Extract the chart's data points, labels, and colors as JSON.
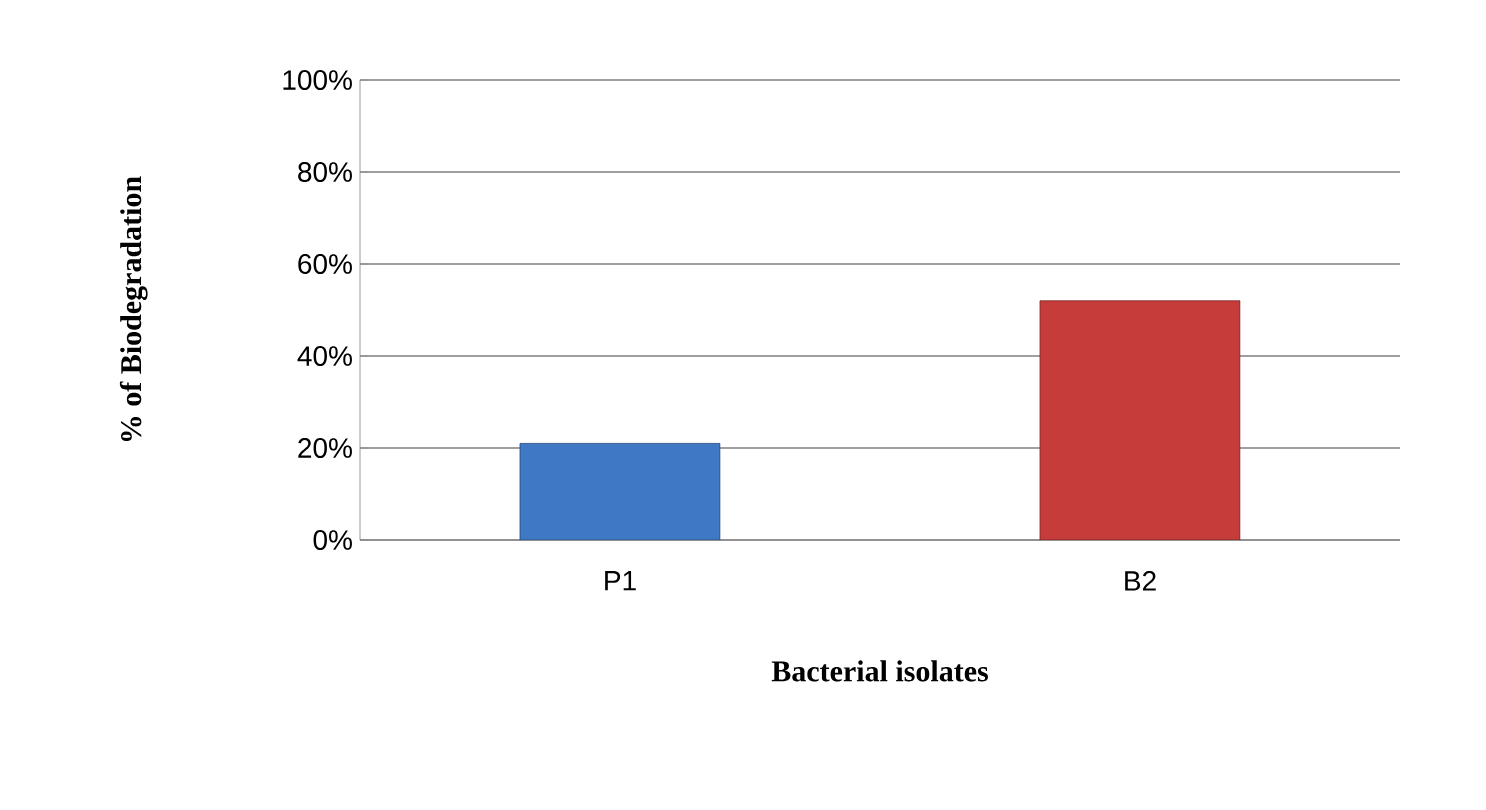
{
  "chart_data": {
    "type": "bar",
    "xlabel": "Bacterial isolates",
    "ylabel": "% of Biodegradation",
    "categories": [
      "P1",
      "B2"
    ],
    "values": [
      21,
      52
    ],
    "colors": [
      "#3f78c4",
      "#c63c3b"
    ],
    "ylim": [
      0,
      100
    ],
    "yticks": [
      {
        "value": 0,
        "label": "0%"
      },
      {
        "value": 20,
        "label": "20%"
      },
      {
        "value": 40,
        "label": "40%"
      },
      {
        "value": 60,
        "label": "60%"
      },
      {
        "value": 80,
        "label": "80%"
      },
      {
        "value": 100,
        "label": "100%"
      }
    ],
    "grid": "y"
  }
}
